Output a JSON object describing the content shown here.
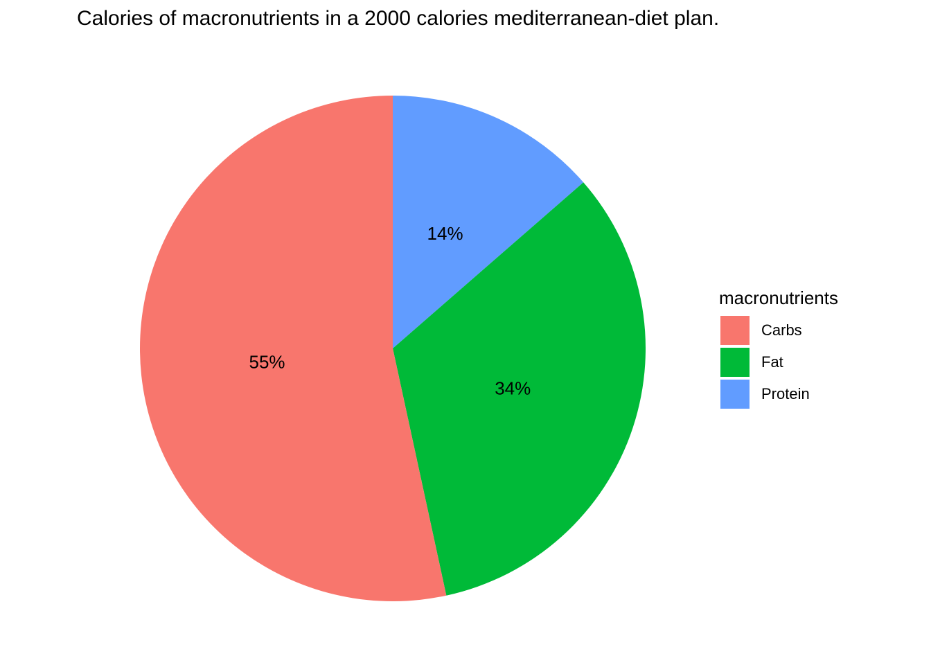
{
  "chart_data": {
    "type": "pie",
    "title": "Calories of macronutrients in a 2000 calories mediterranean-diet plan.",
    "legend": {
      "title": "macronutrients",
      "placement": "right"
    },
    "slices": [
      {
        "label": "Carbs",
        "value": 55,
        "display": "55%",
        "color": "#F8766D"
      },
      {
        "label": "Fat",
        "value": 34,
        "display": "34%",
        "color": "#00BA38"
      },
      {
        "label": "Protein",
        "value": 14,
        "display": "14%",
        "color": "#619CFF"
      }
    ]
  }
}
